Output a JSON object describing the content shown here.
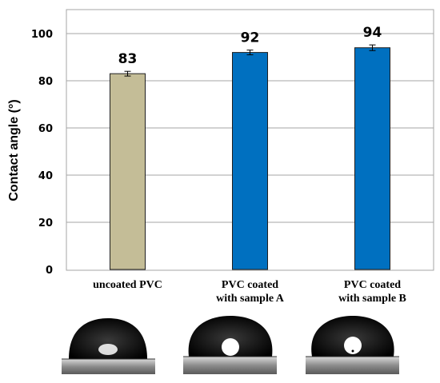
{
  "chart_data": {
    "type": "bar",
    "categories": [
      [
        "uncoated PVC"
      ],
      [
        "PVC coated",
        "with sample A"
      ],
      [
        "PVC coated",
        "with sample B"
      ]
    ],
    "values": [
      83,
      92,
      94
    ],
    "errors": [
      1,
      1,
      1.2
    ],
    "value_labels": [
      "83",
      "92",
      "94"
    ],
    "bar_colors": [
      "#c4bd97",
      "#0070c0",
      "#0070c0"
    ],
    "ylabel": "Contact angle (°)",
    "ylim": [
      0,
      100
    ],
    "yticks": [
      0,
      20,
      40,
      60,
      80,
      100
    ],
    "grid": true
  },
  "images": [
    {
      "name": "droplet-uncoated-pvc",
      "caption": ""
    },
    {
      "name": "droplet-sample-a",
      "caption": ""
    },
    {
      "name": "droplet-sample-b",
      "caption": ""
    }
  ]
}
